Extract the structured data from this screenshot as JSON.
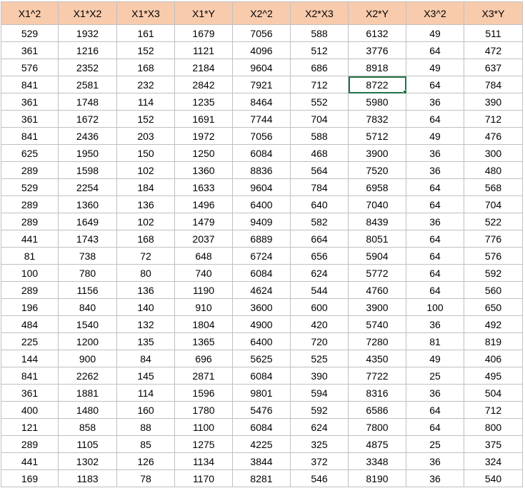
{
  "sheet": {
    "header_color": "#f8cbad",
    "selection_color": "#217346",
    "selected_cell": {
      "row": 3,
      "col": 6
    },
    "columns": [
      "X1^2",
      "X1*X2",
      "X1*X3",
      "X1*Y",
      "X2^2",
      "X2*X3",
      "X2*Y",
      "X3^2",
      "X3*Y"
    ],
    "rows": [
      [
        "529",
        "1932",
        "161",
        "1679",
        "7056",
        "588",
        "6132",
        "49",
        "511"
      ],
      [
        "361",
        "1216",
        "152",
        "1121",
        "4096",
        "512",
        "3776",
        "64",
        "472"
      ],
      [
        "576",
        "2352",
        "168",
        "2184",
        "9604",
        "686",
        "8918",
        "49",
        "637"
      ],
      [
        "841",
        "2581",
        "232",
        "2842",
        "7921",
        "712",
        "8722",
        "64",
        "784"
      ],
      [
        "361",
        "1748",
        "114",
        "1235",
        "8464",
        "552",
        "5980",
        "36",
        "390"
      ],
      [
        "361",
        "1672",
        "152",
        "1691",
        "7744",
        "704",
        "7832",
        "64",
        "712"
      ],
      [
        "841",
        "2436",
        "203",
        "1972",
        "7056",
        "588",
        "5712",
        "49",
        "476"
      ],
      [
        "625",
        "1950",
        "150",
        "1250",
        "6084",
        "468",
        "3900",
        "36",
        "300"
      ],
      [
        "289",
        "1598",
        "102",
        "1360",
        "8836",
        "564",
        "7520",
        "36",
        "480"
      ],
      [
        "529",
        "2254",
        "184",
        "1633",
        "9604",
        "784",
        "6958",
        "64",
        "568"
      ],
      [
        "289",
        "1360",
        "136",
        "1496",
        "6400",
        "640",
        "7040",
        "64",
        "704"
      ],
      [
        "289",
        "1649",
        "102",
        "1479",
        "9409",
        "582",
        "8439",
        "36",
        "522"
      ],
      [
        "441",
        "1743",
        "168",
        "2037",
        "6889",
        "664",
        "8051",
        "64",
        "776"
      ],
      [
        "81",
        "738",
        "72",
        "648",
        "6724",
        "656",
        "5904",
        "64",
        "576"
      ],
      [
        "100",
        "780",
        "80",
        "740",
        "6084",
        "624",
        "5772",
        "64",
        "592"
      ],
      [
        "289",
        "1156",
        "136",
        "1190",
        "4624",
        "544",
        "4760",
        "64",
        "560"
      ],
      [
        "196",
        "840",
        "140",
        "910",
        "3600",
        "600",
        "3900",
        "100",
        "650"
      ],
      [
        "484",
        "1540",
        "132",
        "1804",
        "4900",
        "420",
        "5740",
        "36",
        "492"
      ],
      [
        "225",
        "1200",
        "135",
        "1365",
        "6400",
        "720",
        "7280",
        "81",
        "819"
      ],
      [
        "144",
        "900",
        "84",
        "696",
        "5625",
        "525",
        "4350",
        "49",
        "406"
      ],
      [
        "841",
        "2262",
        "145",
        "2871",
        "6084",
        "390",
        "7722",
        "25",
        "495"
      ],
      [
        "361",
        "1881",
        "114",
        "1596",
        "9801",
        "594",
        "8316",
        "36",
        "504"
      ],
      [
        "400",
        "1480",
        "160",
        "1780",
        "5476",
        "592",
        "6586",
        "64",
        "712"
      ],
      [
        "121",
        "858",
        "88",
        "1100",
        "6084",
        "624",
        "7800",
        "64",
        "800"
      ],
      [
        "289",
        "1105",
        "85",
        "1275",
        "4225",
        "325",
        "4875",
        "25",
        "375"
      ],
      [
        "441",
        "1302",
        "126",
        "1134",
        "3844",
        "372",
        "3348",
        "36",
        "324"
      ],
      [
        "169",
        "1183",
        "78",
        "1170",
        "8281",
        "546",
        "8190",
        "36",
        "540"
      ]
    ]
  }
}
